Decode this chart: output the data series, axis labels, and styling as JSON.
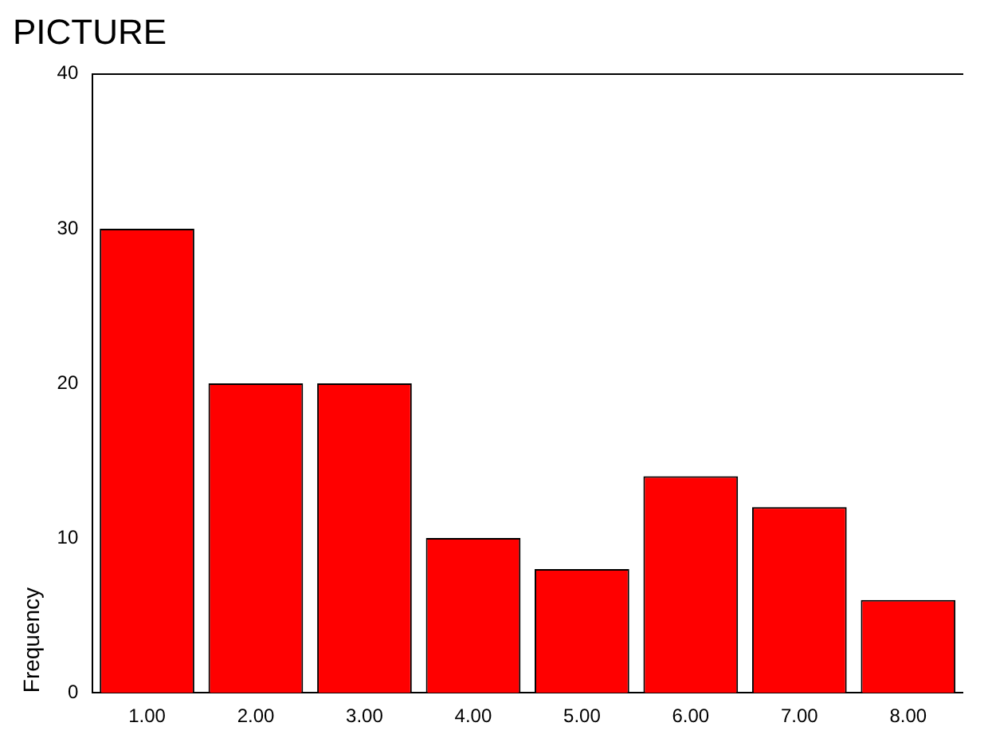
{
  "chart_data": {
    "type": "bar",
    "title": "PICTURE",
    "ylabel": "Frequency",
    "categories": [
      "1.00",
      "2.00",
      "3.00",
      "4.00",
      "5.00",
      "6.00",
      "7.00",
      "8.00"
    ],
    "values": [
      30,
      20,
      20,
      10,
      8,
      14,
      12,
      6
    ],
    "color": "#ff0000",
    "ylim": [
      0,
      40
    ],
    "yticks": [
      0,
      10,
      20,
      30,
      40
    ],
    "grid": false,
    "legend": false
  }
}
